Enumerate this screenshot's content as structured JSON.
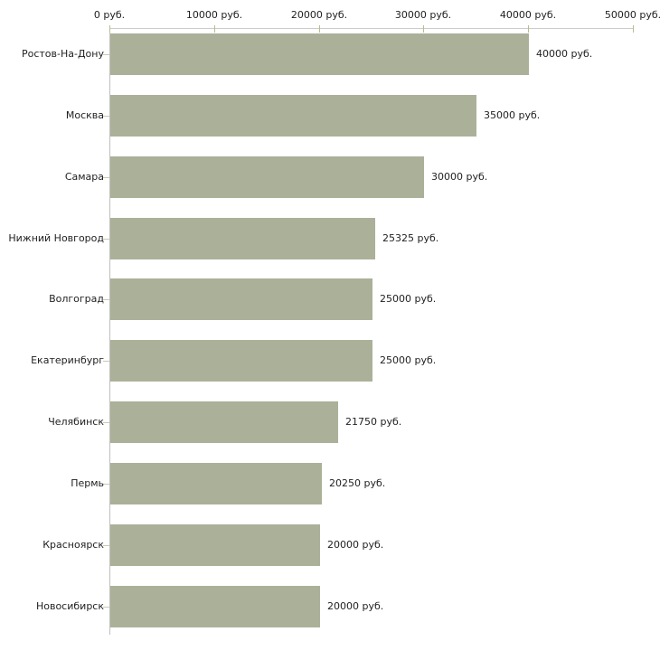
{
  "chart_data": {
    "type": "bar",
    "orientation": "horizontal",
    "title": "",
    "xlabel": "",
    "ylabel": "",
    "grid": false,
    "legend": false,
    "categories": [
      "Ростов-На-Дону",
      "Москва",
      "Самара",
      "Нижний Новгород",
      "Волгоград",
      "Екатеринбург",
      "Челябинск",
      "Пермь",
      "Красноярск",
      "Новосибирск"
    ],
    "values": [
      40000,
      35000,
      30000,
      25325,
      25000,
      25000,
      21750,
      20250,
      20000,
      20000
    ],
    "bar_labels": [
      "40000 руб.",
      "35000 руб.",
      "30000 руб.",
      "25325 руб.",
      "25000 руб.",
      "25000 руб.",
      "21750 руб.",
      "20250 руб.",
      "20000 руб.",
      "20000 руб."
    ],
    "x_axis": {
      "position": "top",
      "min": 0,
      "max": 50000,
      "ticks": [
        0,
        10000,
        20000,
        30000,
        40000,
        50000
      ],
      "tick_labels": [
        "0 руб.",
        "10000 руб.",
        "20000 руб.",
        "30000 руб.",
        "40000 руб.",
        "50000 руб."
      ]
    },
    "colors": {
      "bar": "#abb199",
      "x_tick": "#b9bc8e",
      "category_tick": "#c9cbae",
      "axis_line_horizontal": "#cccccc",
      "axis_line_vertical": "#c0c0c0",
      "text": "#1f1f1f",
      "background": "#ffffff"
    }
  }
}
